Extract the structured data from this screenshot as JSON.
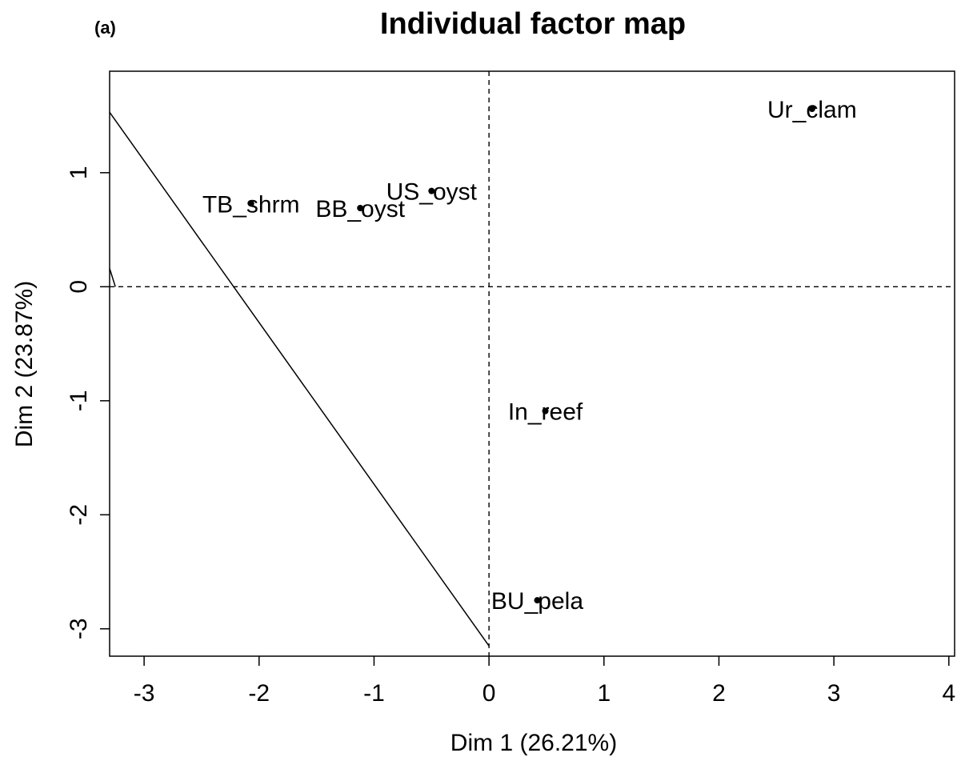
{
  "chart_data": {
    "type": "scatter",
    "panel_label": "(a)",
    "title": "Individual factor map",
    "xlabel": "Dim 1 (26.21%)",
    "ylabel": "Dim 2 (23.87%)",
    "xlim": [
      -3.3,
      4.05
    ],
    "ylim": [
      -3.24,
      1.89
    ],
    "x_ticks": [
      -3,
      -2,
      -1,
      0,
      1,
      2,
      3,
      4
    ],
    "y_ticks": [
      -3,
      -2,
      -1,
      0,
      1
    ],
    "x_tick_labels": [
      "-3",
      "-2",
      "-1",
      "0",
      "1",
      "2",
      "3",
      "4"
    ],
    "y_tick_labels": [
      "-3",
      "-2",
      "-1",
      "0",
      "1"
    ],
    "grid": false,
    "reference_lines": {
      "x": 0,
      "y": 0,
      "style": "dashed"
    },
    "points": [
      {
        "label": "Ur_clam",
        "x": 2.81,
        "y": 1.56
      },
      {
        "label": "US_oyst",
        "x": -0.5,
        "y": 0.84
      },
      {
        "label": "TB_shrm",
        "x": -2.07,
        "y": 0.73
      },
      {
        "label": "BB_oyst",
        "x": -1.12,
        "y": 0.69
      },
      {
        "label": "In_reef",
        "x": 0.49,
        "y": -1.09
      },
      {
        "label": "BU_pela",
        "x": 0.42,
        "y": -2.75
      }
    ],
    "lines": [
      {
        "points": [
          [
            -3.3,
            1.53
          ],
          [
            0.0,
            -3.15
          ]
        ]
      },
      {
        "points": [
          [
            -3.3,
            0.16
          ],
          [
            -3.25,
            0.0
          ]
        ]
      }
    ]
  }
}
